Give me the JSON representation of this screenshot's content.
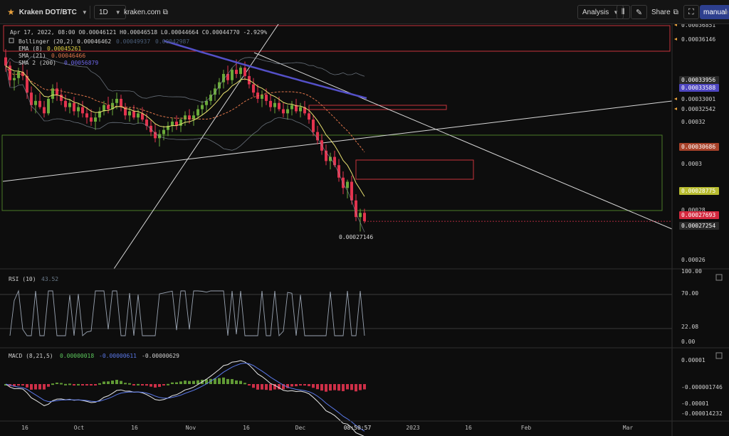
{
  "toolbar": {
    "star_icon": "star-icon",
    "symbol": "Kraken DOT/BTC",
    "interval": "1D",
    "website": "kraken.com",
    "analysis": "Analysis",
    "share": "Share",
    "manual": "manual",
    "edge_label": "e"
  },
  "colors": {
    "background": "#0d0d0d",
    "up": "#6aaa3a",
    "down": "#e2334e",
    "ema": "#e8e070",
    "sma21": "#e0754a",
    "sma200": "#5450c8",
    "bollinger": "#8e9aa8",
    "box_red": "#c8323c",
    "box_green": "#4a7a28",
    "price_tag": "#e2334e"
  },
  "legend": {
    "ohlc": "Apr 17, 2022, 08:00  O0.00046121 H0.00046518 L0.00044664 C0.00044770 -2.929%",
    "bollinger_name": "Bollinger (20,2)",
    "bollinger_v1": "0.00046462",
    "bollinger_v2": "0.00049937",
    "bollinger_v3": "0.00042987",
    "ema_name": "EMA (8)",
    "ema_val": "0.00045261",
    "sma21_name": "SMA (21)",
    "sma21_val": "0.00046466",
    "sma200_name": "SMA 2 (200)",
    "sma200_val": "0.00056879"
  },
  "price_axis": {
    "plain_labels": [
      "0.00036851",
      "0.00036146",
      "0.00033001",
      "0.00032542",
      "0.00032",
      "0.0003",
      "0.00028",
      "0.00026"
    ],
    "tags": [
      {
        "text": "0.00033956",
        "bg": "#2a2a2a"
      },
      {
        "text": "0.00033588",
        "bg": "#4e46c0"
      },
      {
        "text": "0.00030686",
        "bg": "#a8422a"
      },
      {
        "text": "0.00028775",
        "bg": "#b8bc30"
      },
      {
        "text": "0.00027693",
        "bg": "#d4283e"
      },
      {
        "text": "0.00027254",
        "bg": "#2a2a2a"
      }
    ],
    "low_marker": "0.00027146"
  },
  "rsi": {
    "label": "RSI (10)",
    "value": "43.52",
    "axis": [
      "100.00",
      "70.00",
      "22.08",
      "0.00"
    ]
  },
  "macd": {
    "label": "MACD (8,21,5)",
    "v1": "0.00000018",
    "v2": "-0.00000611",
    "v3": "-0.00000629",
    "axis": [
      "0.00001",
      "-0.000001746",
      "-0.00001",
      "-0.000014232"
    ]
  },
  "time_axis": [
    "16",
    "Oct",
    "16",
    "Nov",
    "16",
    "Dec",
    "08:50:57",
    "2023",
    "16",
    "Feb",
    "Mar"
  ],
  "chart_data": {
    "type": "candlestick",
    "title": "Kraken DOT/BTC",
    "interval": "1D",
    "y_range": [
      0.000254,
      0.000372
    ],
    "candles": [
      [
        0.000356,
        0.00036,
        0.000349,
        0.000352
      ],
      [
        0.000352,
        0.000354,
        0.000342,
        0.000345
      ],
      [
        0.000345,
        0.000349,
        0.00034,
        0.000346
      ],
      [
        0.000346,
        0.000351,
        0.000343,
        0.000349
      ],
      [
        0.000349,
        0.000353,
        0.000345,
        0.000347
      ],
      [
        0.000347,
        0.00035,
        0.000336,
        0.000339
      ],
      [
        0.000339,
        0.000342,
        0.00033,
        0.000333
      ],
      [
        0.000333,
        0.000338,
        0.000329,
        0.000335
      ],
      [
        0.000335,
        0.000339,
        0.000331,
        0.000332
      ],
      [
        0.000332,
        0.000335,
        0.000327,
        0.000329
      ],
      [
        0.000329,
        0.000337,
        0.000328,
        0.000336
      ],
      [
        0.000336,
        0.000343,
        0.000334,
        0.000341
      ],
      [
        0.000341,
        0.000344,
        0.000335,
        0.000338
      ],
      [
        0.000338,
        0.000341,
        0.000333,
        0.000335
      ],
      [
        0.000335,
        0.000338,
        0.00033,
        0.000332
      ],
      [
        0.000332,
        0.000336,
        0.000329,
        0.000334
      ],
      [
        0.000334,
        0.000337,
        0.000328,
        0.00033
      ],
      [
        0.00033,
        0.000334,
        0.000327,
        0.000332
      ],
      [
        0.000332,
        0.000335,
        0.000327,
        0.000329
      ],
      [
        0.000329,
        0.000332,
        0.000324,
        0.000327
      ],
      [
        0.000327,
        0.000331,
        0.000323,
        0.000325
      ],
      [
        0.000325,
        0.000329,
        0.000321,
        0.000327
      ],
      [
        0.000327,
        0.000332,
        0.000325,
        0.00033
      ],
      [
        0.00033,
        0.000335,
        0.000328,
        0.000333
      ],
      [
        0.000333,
        0.000337,
        0.000329,
        0.000331
      ],
      [
        0.000331,
        0.000336,
        0.000328,
        0.000334
      ],
      [
        0.000334,
        0.000339,
        0.000331,
        0.000336
      ],
      [
        0.000336,
        0.000338,
        0.00033,
        0.000332
      ],
      [
        0.000332,
        0.000334,
        0.000326,
        0.000328
      ],
      [
        0.000328,
        0.000332,
        0.000325,
        0.00033
      ],
      [
        0.00033,
        0.000333,
        0.000326,
        0.000327
      ],
      [
        0.000327,
        0.000331,
        0.000324,
        0.000329
      ],
      [
        0.000329,
        0.000332,
        0.000325,
        0.000326
      ],
      [
        0.000326,
        0.000329,
        0.000321,
        0.000323
      ],
      [
        0.000323,
        0.000326,
        0.000318,
        0.00032
      ],
      [
        0.00032,
        0.000324,
        0.000315,
        0.000317
      ],
      [
        0.000317,
        0.000321,
        0.000313,
        0.000319
      ],
      [
        0.000319,
        0.000323,
        0.000316,
        0.000321
      ],
      [
        0.000321,
        0.000325,
        0.000318,
        0.000323
      ],
      [
        0.000323,
        0.000327,
        0.00032,
        0.000325
      ],
      [
        0.000325,
        0.000328,
        0.000321,
        0.000323
      ],
      [
        0.000323,
        0.000327,
        0.00032,
        0.000326
      ],
      [
        0.000326,
        0.00033,
        0.000323,
        0.000328
      ],
      [
        0.000328,
        0.000331,
        0.000324,
        0.000326
      ],
      [
        0.000326,
        0.00033,
        0.000323,
        0.000328
      ],
      [
        0.000328,
        0.000333,
        0.000326,
        0.000331
      ],
      [
        0.000331,
        0.000335,
        0.000328,
        0.000333
      ],
      [
        0.000333,
        0.000337,
        0.00033,
        0.000335
      ],
      [
        0.000335,
        0.00034,
        0.000333,
        0.000338
      ],
      [
        0.000338,
        0.000343,
        0.000335,
        0.000341
      ],
      [
        0.000341,
        0.000346,
        0.000338,
        0.000344
      ],
      [
        0.000344,
        0.00035,
        0.000341,
        0.000348
      ],
      [
        0.000348,
        0.000352,
        0.000343,
        0.000345
      ],
      [
        0.000345,
        0.000351,
        0.000343,
        0.00035
      ],
      [
        0.00035,
        0.000355,
        0.000346,
        0.000348
      ],
      [
        0.000348,
        0.000352,
        0.000344,
        0.000351
      ],
      [
        0.000351,
        0.000354,
        0.000345,
        0.000347
      ],
      [
        0.000347,
        0.00035,
        0.000341,
        0.000343
      ],
      [
        0.000343,
        0.000346,
        0.000337,
        0.000339
      ],
      [
        0.000339,
        0.000343,
        0.000334,
        0.000336
      ],
      [
        0.000336,
        0.00034,
        0.000332,
        0.000338
      ],
      [
        0.000338,
        0.000341,
        0.000333,
        0.000335
      ],
      [
        0.000335,
        0.000338,
        0.00033,
        0.000332
      ],
      [
        0.000332,
        0.000336,
        0.000329,
        0.000334
      ],
      [
        0.000334,
        0.000337,
        0.00033,
        0.000331
      ],
      [
        0.000331,
        0.000334,
        0.000327,
        0.000329
      ],
      [
        0.000329,
        0.000333,
        0.000326,
        0.000331
      ],
      [
        0.000331,
        0.000335,
        0.000328,
        0.000333
      ],
      [
        0.000333,
        0.000336,
        0.000329,
        0.00033
      ],
      [
        0.00033,
        0.000334,
        0.000327,
        0.000332
      ],
      [
        0.000332,
        0.000335,
        0.000328,
        0.000329
      ],
      [
        0.000329,
        0.000332,
        0.000324,
        0.000326
      ],
      [
        0.000326,
        0.000328,
        0.000318,
        0.00032
      ],
      [
        0.00032,
        0.000323,
        0.000314,
        0.000316
      ],
      [
        0.000316,
        0.000319,
        0.000309,
        0.000311
      ],
      [
        0.000311,
        0.000314,
        0.000304,
        0.000306
      ],
      [
        0.000306,
        0.00031,
        0.000302,
        0.000308
      ],
      [
        0.000308,
        0.000311,
        0.000303,
        0.000304
      ],
      [
        0.000304,
        0.000307,
        0.000296,
        0.000298
      ],
      [
        0.000298,
        0.000301,
        0.00029,
        0.000293
      ],
      [
        0.000293,
        0.000297,
        0.000288,
        0.000296
      ],
      [
        0.000296,
        0.000299,
        0.000285,
        0.000287
      ],
      [
        0.000287,
        0.00029,
        0.000277,
        0.000279
      ],
      [
        0.000279,
        0.000283,
        0.000272,
        0.000281
      ],
      [
        0.000281,
        0.000283,
        0.000276,
        0.000277
      ]
    ],
    "current_price": 0.00027693,
    "low_label": 0.00027146,
    "rsi_range": [
      0,
      100
    ],
    "rsi_levels": [
      70,
      22.08
    ]
  }
}
